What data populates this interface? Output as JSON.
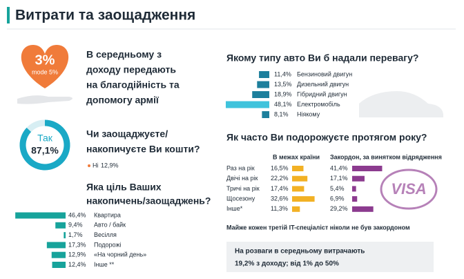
{
  "title": "Витрати та заощадження",
  "donation": {
    "value_label": "3%",
    "mode": "mode 5%",
    "lines": [
      "В середньому з",
      "доходу передають",
      "на благодійність та",
      "допомогу армії"
    ]
  },
  "savings": {
    "lines": [
      "Чи заощаджуєте/",
      "накопичуєте Ви кошти?"
    ],
    "yes": {
      "label": "Так",
      "value": 87.1,
      "value_label": "87,1%"
    },
    "no": {
      "label": "Ні",
      "value": 12.9,
      "value_label": "12,9%"
    },
    "color": "#1aa9c6"
  },
  "goals": {
    "lines": [
      "Яка ціль Ваших",
      "накопичень/заощаджень?"
    ],
    "color": "#17a39b",
    "rows": [
      {
        "label": "Квартира",
        "value": 46.4,
        "value_label": "46,4%"
      },
      {
        "label": "Авто / байк",
        "value": 9.4,
        "value_label": "9,4%"
      },
      {
        "label": "Весілля",
        "value": 1.7,
        "value_label": "1,7%"
      },
      {
        "label": "Подорожі",
        "value": 17.3,
        "value_label": "17,3%"
      },
      {
        "label": "«На чорний день»",
        "value": 12.9,
        "value_label": "12,9%"
      },
      {
        "label": "Інше **",
        "value": 12.4,
        "value_label": "12,4%"
      }
    ]
  },
  "cars": {
    "question": "Якому типу авто Ви б надали перевагу?",
    "rows": [
      {
        "label": "Бензиновий двигун",
        "value": 11.4,
        "value_label": "11,4%",
        "color": "#1d7f9c"
      },
      {
        "label": "Дизельний двигун",
        "value": 13.5,
        "value_label": "13,5%",
        "color": "#1d7f9c"
      },
      {
        "label": "Гібридний двигун",
        "value": 18.9,
        "value_label": "18,9%",
        "color": "#1d7f9c"
      },
      {
        "label": "Електромобіль",
        "value": 48.1,
        "value_label": "48,1%",
        "color": "#3fc3dc"
      },
      {
        "label": "Ніякому",
        "value": 8.1,
        "value_label": "8,1%",
        "color": "#1d7f9c"
      }
    ]
  },
  "travel": {
    "question": "Як часто Ви подорожуєте протягом року?",
    "headers": [
      "В межах країни",
      "Закордон, за винятком відрядження"
    ],
    "colors": [
      "#f2b124",
      "#8c3b8f"
    ],
    "rows": [
      {
        "label": "Раз на рік",
        "values": [
          16.5,
          41.4
        ],
        "value_labels": [
          "16,5%",
          "41,4%"
        ]
      },
      {
        "label": "Двічі на рік",
        "values": [
          22.2,
          17.1
        ],
        "value_labels": [
          "22,2%",
          "17,1%"
        ]
      },
      {
        "label": "Тричі на рік",
        "values": [
          17.4,
          5.4
        ],
        "value_labels": [
          "17,4%",
          "5,4%"
        ]
      },
      {
        "label": "Щосезону",
        "values": [
          32.6,
          6.9
        ],
        "value_labels": [
          "32,6%",
          "6,9%"
        ]
      },
      {
        "label": "Інше*",
        "values": [
          11.3,
          29.2
        ],
        "value_labels": [
          "11,3%",
          "29,2%"
        ]
      }
    ],
    "stamp": "VISA",
    "note": "Майже кожен третій IT-спеціаліст ніколи не був закордоном"
  },
  "entertainment": {
    "lines": [
      "На розваги в середньому витрачають",
      "19,2% з доходу; від 1% до 50%"
    ]
  }
}
